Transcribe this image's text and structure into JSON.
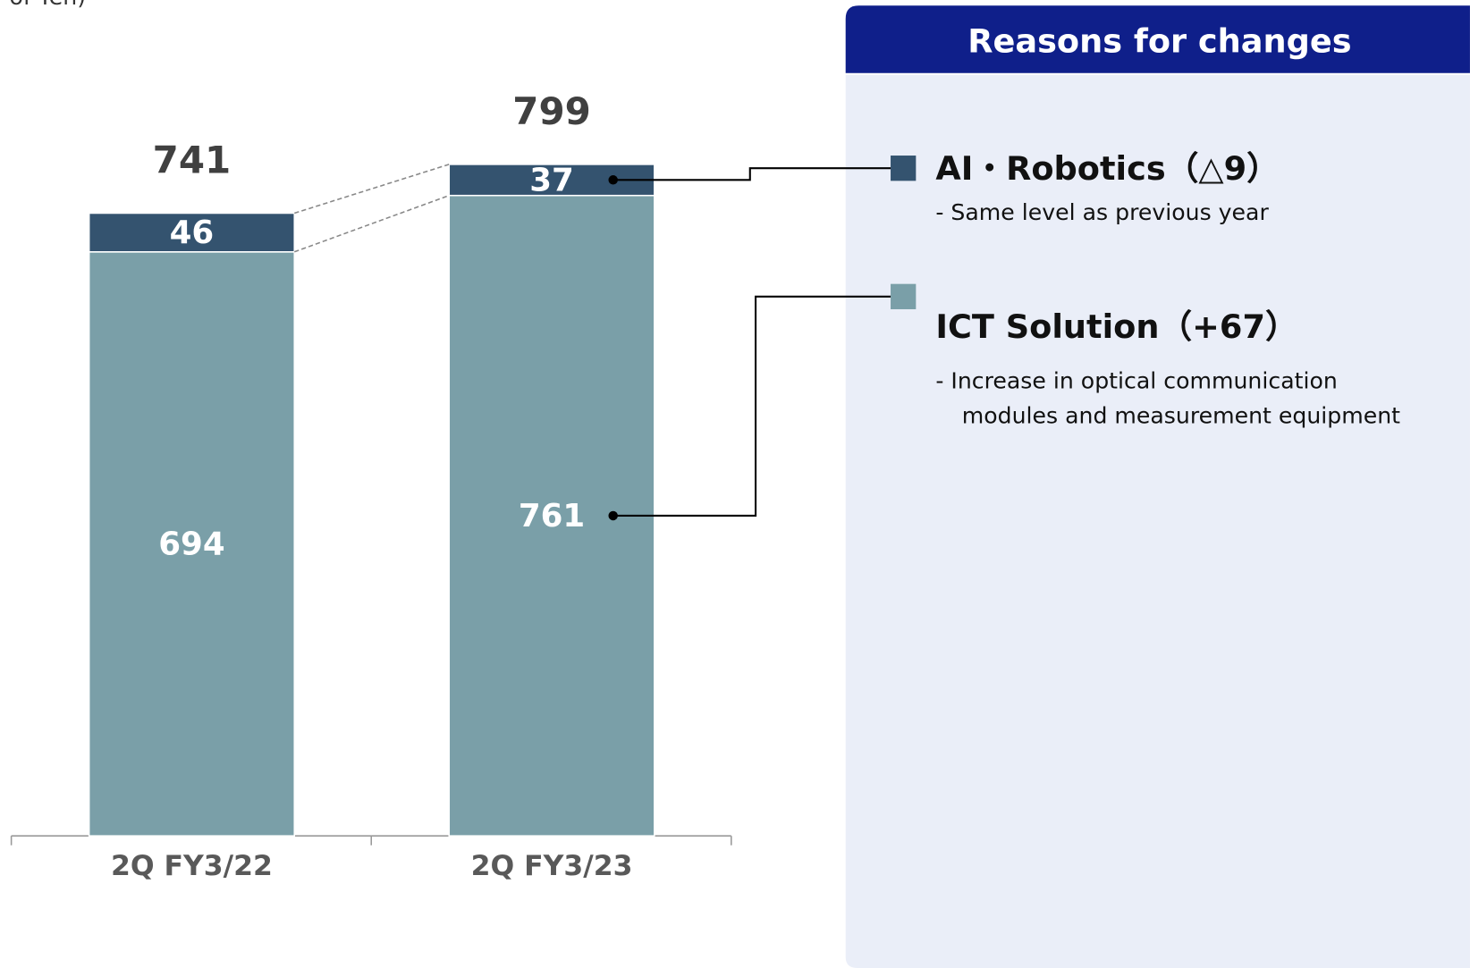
{
  "chart_data": {
    "type": "stacked_bar",
    "unit_label": "of Yen)",
    "categories": [
      "2Q FY3/22",
      "2Q FY3/23"
    ],
    "series": [
      {
        "name": "ICT Solution",
        "color": "#7a9fa8",
        "values": [
          694,
          761
        ],
        "change": "（+67）",
        "description": [
          "-  Increase in optical communication",
          "modules and measurement equipment"
        ]
      },
      {
        "name": "AI・Robotics",
        "color": "#34536f",
        "values": [
          46,
          37
        ],
        "change": "（△9）",
        "description": [
          "- Same level as previous year"
        ]
      }
    ],
    "totals": [
      741,
      799
    ],
    "ylim": [
      0,
      1000
    ],
    "panel_title": "Reasons for changes"
  }
}
